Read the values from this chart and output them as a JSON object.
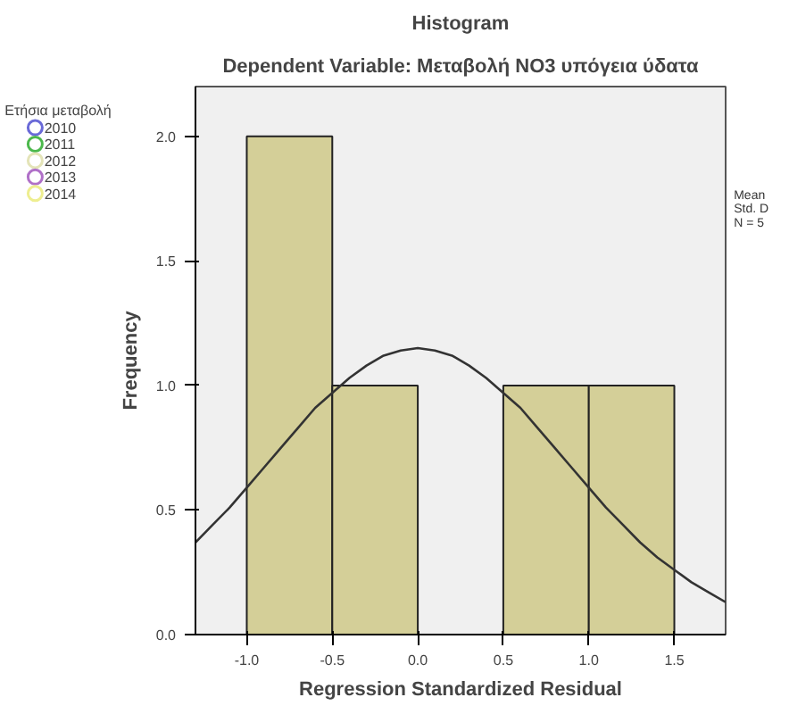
{
  "chart_data": {
    "type": "histogram",
    "title": "Histogram",
    "subtitle": "Dependent Variable: Μεταβολή NO3 υπόγεια ύδατα",
    "xlabel": "Regression Standardized Residual",
    "ylabel": "Frequency",
    "bins": [
      -1.0,
      -0.5,
      0.0,
      0.5,
      1.0,
      1.5
    ],
    "values": [
      2,
      1,
      0,
      1,
      1
    ],
    "color": "#d4cf98",
    "series": [
      {
        "type": "line",
        "color": "#333333",
        "x": [
          -1.3,
          -1.2,
          -1.1,
          -1.0,
          -0.9,
          -0.8,
          -0.7,
          -0.6,
          -0.5,
          -0.4,
          -0.3,
          -0.2,
          -0.1,
          0.0,
          0.1,
          0.2,
          0.3,
          0.4,
          0.5,
          0.6,
          0.7,
          0.8,
          0.9,
          1.0,
          1.1,
          1.2,
          1.3,
          1.4,
          1.5,
          1.6,
          1.7,
          1.8
        ],
        "values": [
          0.37,
          0.44,
          0.51,
          0.59,
          0.67,
          0.75,
          0.83,
          0.91,
          0.97,
          1.03,
          1.08,
          1.12,
          1.14,
          1.15,
          1.14,
          1.12,
          1.08,
          1.03,
          0.97,
          0.91,
          0.83,
          0.75,
          0.67,
          0.59,
          0.51,
          0.44,
          0.37,
          0.31,
          0.26,
          0.21,
          0.17,
          0.13
        ]
      },
      {
        "type": "scatter",
        "name": "2010",
        "color": "#6a6ad8",
        "marker": "circle"
      },
      {
        "type": "scatter",
        "name": "2011",
        "color": "#4cb84c",
        "marker": "circle"
      },
      {
        "type": "scatter",
        "name": "2012",
        "color": "#e4e4b8",
        "marker": "circle"
      },
      {
        "type": "scatter",
        "name": "2013",
        "color": "#b070c8",
        "marker": "circle"
      },
      {
        "type": "scatter",
        "name": "2014",
        "color": "#eeee90",
        "marker": "circle"
      }
    ],
    "legend_title": "Ετήσια μεταβολή",
    "legend": "top left",
    "annotations": [
      "Mean",
      "Std. D",
      "N = 5"
    ],
    "xlim": [
      -1.3,
      1.8
    ],
    "xticks": [
      {
        "value": -1.0,
        "label": "-1.0"
      },
      {
        "value": -0.5,
        "label": "-0.5"
      },
      {
        "value": 0.0,
        "label": "0.0"
      },
      {
        "value": 0.5,
        "label": "0.5"
      },
      {
        "value": 1.0,
        "label": "1.0"
      },
      {
        "value": 1.5,
        "label": "1.5"
      }
    ],
    "ylim": [
      0,
      2.2
    ],
    "yticks": [
      {
        "value": 0,
        "label": "0.0"
      },
      {
        "value": 0.5,
        "label": "0.5"
      },
      {
        "value": 1.0,
        "label": "1.0"
      },
      {
        "value": 1.5,
        "label": "1.5"
      },
      {
        "value": 2.0,
        "label": "2.0"
      }
    ],
    "grid": false
  }
}
